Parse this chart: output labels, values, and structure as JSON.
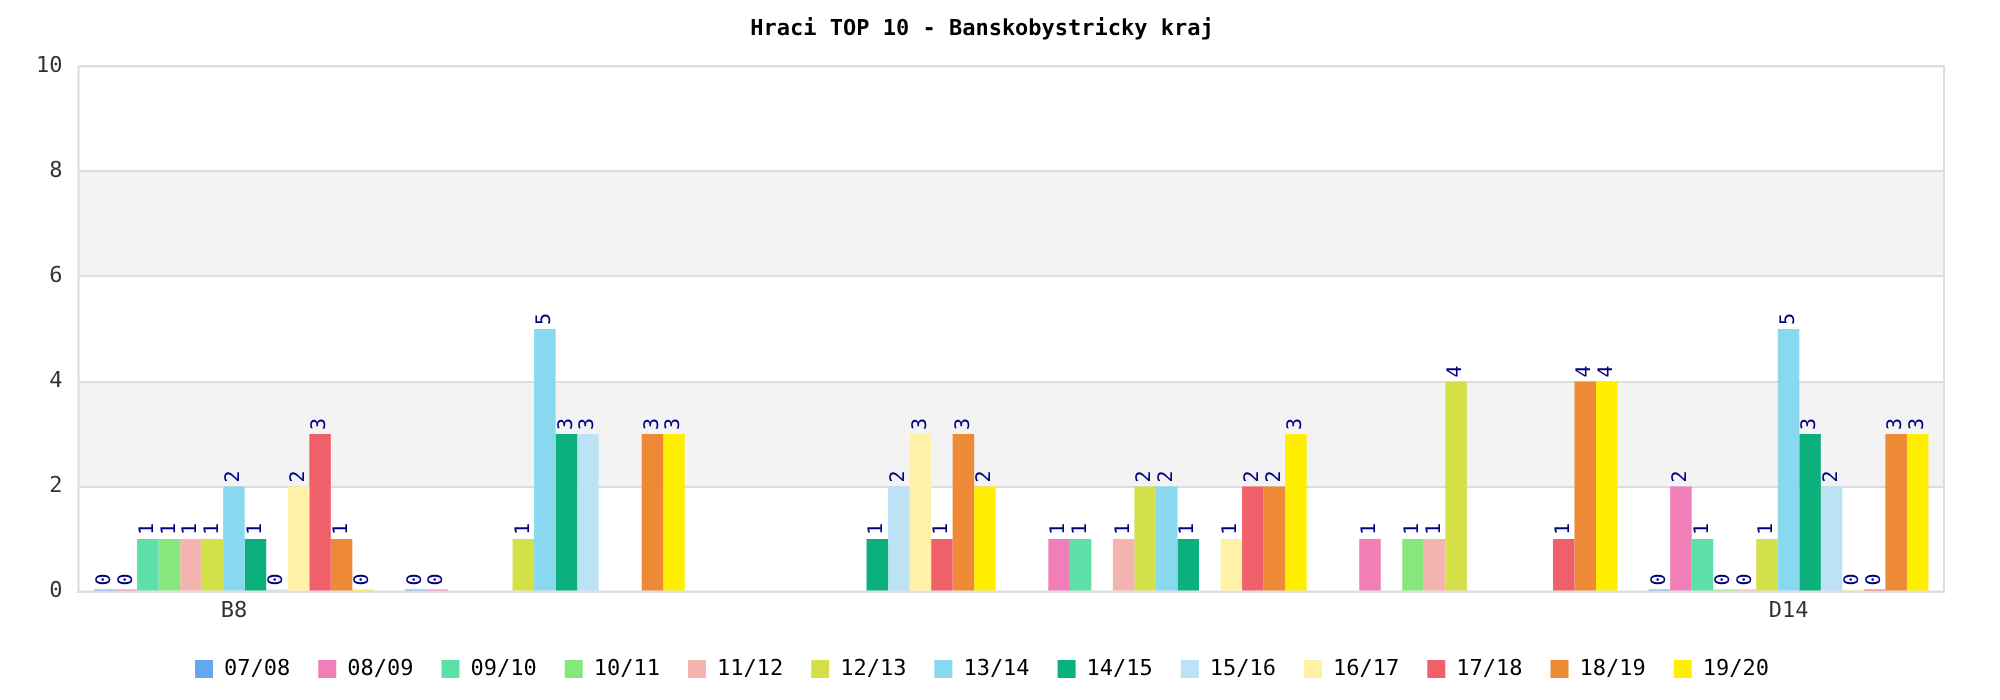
{
  "chart_data": {
    "type": "bar",
    "title": "Hraci TOP 10 - Banskobystricky kraj",
    "categories": [
      "B8",
      null,
      null,
      null,
      null,
      "D14"
    ],
    "ylim": [
      0,
      10
    ],
    "yticks": [
      0,
      2,
      4,
      6,
      8,
      10
    ],
    "grid": "y",
    "legend": "bottom",
    "data_labels": true,
    "series": [
      {
        "name": "07/08",
        "color": "#62a8ec",
        "values": [
          0,
          0,
          null,
          null,
          null,
          0
        ]
      },
      {
        "name": "08/09",
        "color": "#f07fb8",
        "values": [
          0,
          0,
          null,
          1,
          1,
          2
        ]
      },
      {
        "name": "09/10",
        "color": "#5de0a8",
        "values": [
          1,
          null,
          null,
          1,
          null,
          1
        ]
      },
      {
        "name": "10/11",
        "color": "#86e87c",
        "values": [
          1,
          null,
          null,
          null,
          1,
          0
        ]
      },
      {
        "name": "11/12",
        "color": "#f4b4b0",
        "values": [
          1,
          null,
          null,
          1,
          1,
          0
        ]
      },
      {
        "name": "12/13",
        "color": "#d4e048",
        "values": [
          1,
          1,
          null,
          2,
          4,
          1
        ]
      },
      {
        "name": "13/14",
        "color": "#88d8f0",
        "values": [
          2,
          5,
          null,
          2,
          null,
          5
        ]
      },
      {
        "name": "14/15",
        "color": "#0bb07c",
        "values": [
          1,
          3,
          1,
          1,
          null,
          3
        ]
      },
      {
        "name": "15/16",
        "color": "#bce2f6",
        "values": [
          0,
          3,
          2,
          null,
          null,
          2
        ]
      },
      {
        "name": "16/17",
        "color": "#fff2a8",
        "values": [
          2,
          null,
          3,
          1,
          null,
          0
        ]
      },
      {
        "name": "17/18",
        "color": "#f0606a",
        "values": [
          3,
          null,
          1,
          2,
          1,
          0
        ]
      },
      {
        "name": "18/19",
        "color": "#ee8a36",
        "values": [
          1,
          3,
          3,
          2,
          4,
          3
        ]
      },
      {
        "name": "19/20",
        "color": "#ffee00",
        "values": [
          0,
          3,
          2,
          3,
          4,
          3
        ]
      }
    ]
  }
}
